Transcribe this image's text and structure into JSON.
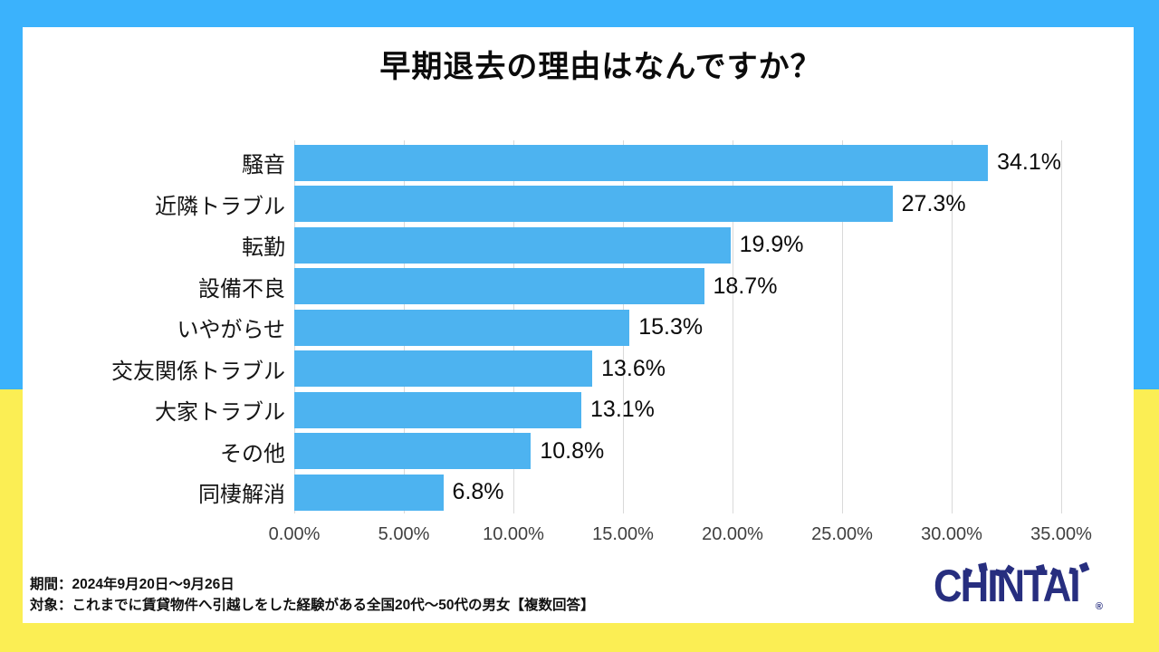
{
  "title": "早期退去の理由はなんですか？",
  "chart_data": {
    "type": "bar",
    "orientation": "horizontal",
    "title": "早期退去の理由はなんですか？",
    "categories": [
      "騒音",
      "近隣トラブル",
      "転勤",
      "設備不良",
      "いやがらせ",
      "交友関係トラブル",
      "大家トラブル",
      "その他",
      "同棲解消"
    ],
    "values": [
      34.1,
      27.3,
      19.9,
      18.7,
      15.3,
      13.6,
      13.1,
      10.8,
      6.8
    ],
    "value_labels": [
      "34.1%",
      "27.3%",
      "19.9%",
      "18.7%",
      "15.3%",
      "13.6%",
      "13.1%",
      "10.8%",
      "6.8%"
    ],
    "x_ticks": [
      "0.00%",
      "5.00%",
      "10.00%",
      "15.00%",
      "20.00%",
      "25.00%",
      "30.00%",
      "35.00%"
    ],
    "xlim": [
      0,
      35
    ],
    "grid": true,
    "bar_color": "#4DB3F0",
    "gridline_color": "#D9D9D9"
  },
  "footer": {
    "period": "期間：2024年9月20日～9月26日",
    "target": "対象：これまでに賃貸物件へ引越しをした経験がある全国20代～50代の男女【複数回答】"
  },
  "logo": {
    "text": "CHINTAI",
    "registered": "®",
    "color": "#272E7F"
  },
  "frame": {
    "top_color": "#3BB2FC",
    "bottom_color": "#FBEE54",
    "card_color": "#FFFFFF"
  }
}
